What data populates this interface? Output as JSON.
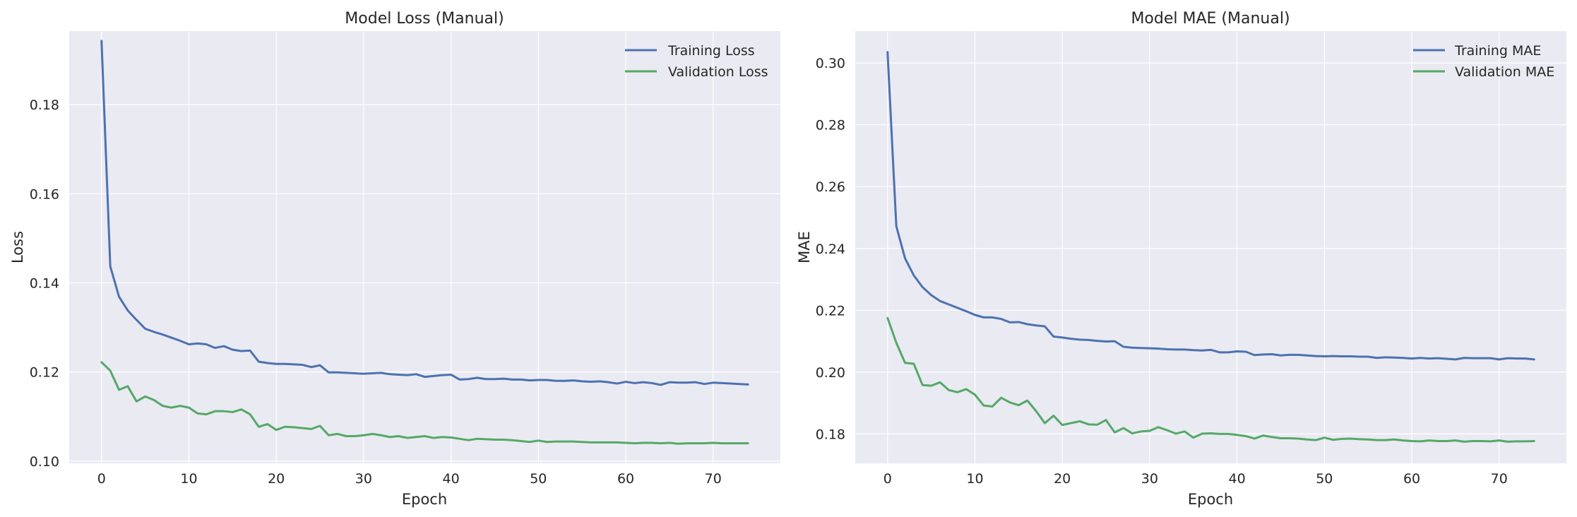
{
  "chart_data": [
    {
      "type": "line",
      "title": "Model Loss (Manual)",
      "xlabel": "Epoch",
      "ylabel": "Loss",
      "xlim": [
        -3.7,
        77.7
      ],
      "ylim": [
        0.0995,
        0.1965
      ],
      "xticks": [
        0,
        10,
        20,
        30,
        40,
        50,
        60,
        70
      ],
      "yticks": [
        0.1,
        0.12,
        0.14,
        0.16,
        0.18
      ],
      "ytick_labels": [
        "0.10",
        "0.12",
        "0.14",
        "0.16",
        "0.18"
      ],
      "grid": true,
      "legend": "top-right",
      "series": [
        {
          "name": "Training Loss",
          "color": "#4c72b0",
          "values": [
            0.1943,
            0.1437,
            0.1369,
            0.1338,
            0.1317,
            0.1297,
            0.129,
            0.1284,
            0.1277,
            0.127,
            0.1262,
            0.1264,
            0.1262,
            0.1254,
            0.1258,
            0.125,
            0.1247,
            0.1248,
            0.1223,
            0.122,
            0.1218,
            0.1218,
            0.1217,
            0.1216,
            0.1211,
            0.1215,
            0.1199,
            0.1199,
            0.1198,
            0.1197,
            0.1196,
            0.1197,
            0.1198,
            0.1195,
            0.1194,
            0.1193,
            0.1195,
            0.1189,
            0.1191,
            0.1193,
            0.1194,
            0.1183,
            0.1184,
            0.1187,
            0.1184,
            0.1184,
            0.1185,
            0.1183,
            0.1183,
            0.1181,
            0.1182,
            0.1182,
            0.118,
            0.118,
            0.1181,
            0.1179,
            0.1178,
            0.1179,
            0.1177,
            0.1174,
            0.1178,
            0.1175,
            0.1177,
            0.1175,
            0.1171,
            0.1177,
            0.1176,
            0.1176,
            0.1177,
            0.1173,
            0.1176,
            0.1175,
            0.1174,
            0.1173,
            0.1172
          ]
        },
        {
          "name": "Validation Loss",
          "color": "#55a868",
          "values": [
            0.1222,
            0.1203,
            0.116,
            0.1168,
            0.1134,
            0.1145,
            0.1137,
            0.1124,
            0.112,
            0.1124,
            0.112,
            0.1107,
            0.1105,
            0.1112,
            0.1112,
            0.111,
            0.1116,
            0.1105,
            0.1077,
            0.1083,
            0.107,
            0.1077,
            0.1076,
            0.1074,
            0.1072,
            0.1079,
            0.1058,
            0.1061,
            0.1056,
            0.1056,
            0.1058,
            0.1061,
            0.1058,
            0.1054,
            0.1056,
            0.1052,
            0.1054,
            0.1056,
            0.1052,
            0.1054,
            0.1053,
            0.105,
            0.1047,
            0.105,
            0.1049,
            0.1048,
            0.1048,
            0.1047,
            0.1045,
            0.1043,
            0.1046,
            0.1043,
            0.1044,
            0.1044,
            0.1044,
            0.1043,
            0.1042,
            0.1042,
            0.1042,
            0.1042,
            0.1041,
            0.104,
            0.1041,
            0.1041,
            0.104,
            0.1041,
            0.1039,
            0.104,
            0.104,
            0.104,
            0.1041,
            0.104,
            0.104,
            0.104,
            0.104
          ]
        }
      ]
    },
    {
      "type": "line",
      "title": "Model MAE (Manual)",
      "xlabel": "Epoch",
      "ylabel": "MAE",
      "xlim": [
        -3.7,
        77.7
      ],
      "ylim": [
        0.1705,
        0.3103
      ],
      "xticks": [
        0,
        10,
        20,
        30,
        40,
        50,
        60,
        70
      ],
      "yticks": [
        0.18,
        0.2,
        0.22,
        0.24,
        0.26,
        0.28,
        0.3
      ],
      "ytick_labels": [
        "0.18",
        "0.20",
        "0.22",
        "0.24",
        "0.26",
        "0.28",
        "0.30"
      ],
      "grid": true,
      "legend": "top-right",
      "series": [
        {
          "name": "Training MAE",
          "color": "#4c72b0",
          "values": [
            0.3035,
            0.2472,
            0.2368,
            0.2313,
            0.2275,
            0.2249,
            0.223,
            0.2219,
            0.2208,
            0.2197,
            0.2185,
            0.2177,
            0.2177,
            0.2172,
            0.2161,
            0.2162,
            0.2155,
            0.2151,
            0.2148,
            0.2115,
            0.2112,
            0.2108,
            0.2105,
            0.2104,
            0.2101,
            0.2099,
            0.21,
            0.2082,
            0.2079,
            0.2078,
            0.2077,
            0.2076,
            0.2074,
            0.2073,
            0.2073,
            0.2071,
            0.207,
            0.2072,
            0.2064,
            0.2064,
            0.2067,
            0.2066,
            0.2055,
            0.2057,
            0.2058,
            0.2054,
            0.2056,
            0.2056,
            0.2054,
            0.2052,
            0.2051,
            0.2052,
            0.2051,
            0.2051,
            0.205,
            0.205,
            0.2046,
            0.2048,
            0.2047,
            0.2046,
            0.2044,
            0.2046,
            0.2044,
            0.2045,
            0.2043,
            0.2041,
            0.2046,
            0.2045,
            0.2045,
            0.2045,
            0.2041,
            0.2045,
            0.2044,
            0.2044,
            0.2041
          ]
        },
        {
          "name": "Validation MAE",
          "color": "#55a868",
          "values": [
            0.2175,
            0.2095,
            0.203,
            0.2027,
            0.1958,
            0.1956,
            0.1967,
            0.1942,
            0.1935,
            0.1945,
            0.1927,
            0.1892,
            0.1889,
            0.1917,
            0.1902,
            0.1893,
            0.1908,
            0.1874,
            0.1835,
            0.1859,
            0.1829,
            0.1835,
            0.1841,
            0.1831,
            0.183,
            0.1845,
            0.1805,
            0.1819,
            0.1802,
            0.1808,
            0.181,
            0.1822,
            0.1812,
            0.1801,
            0.1808,
            0.1788,
            0.1801,
            0.1802,
            0.18,
            0.18,
            0.1797,
            0.1793,
            0.1785,
            0.1795,
            0.179,
            0.1786,
            0.1786,
            0.1785,
            0.1782,
            0.178,
            0.1788,
            0.1781,
            0.1784,
            0.1785,
            0.1783,
            0.1782,
            0.178,
            0.178,
            0.1782,
            0.1779,
            0.1777,
            0.1776,
            0.1779,
            0.1777,
            0.1777,
            0.1779,
            0.1775,
            0.1777,
            0.1777,
            0.1776,
            0.1779,
            0.1775,
            0.1776,
            0.1776,
            0.1777
          ]
        }
      ]
    }
  ]
}
